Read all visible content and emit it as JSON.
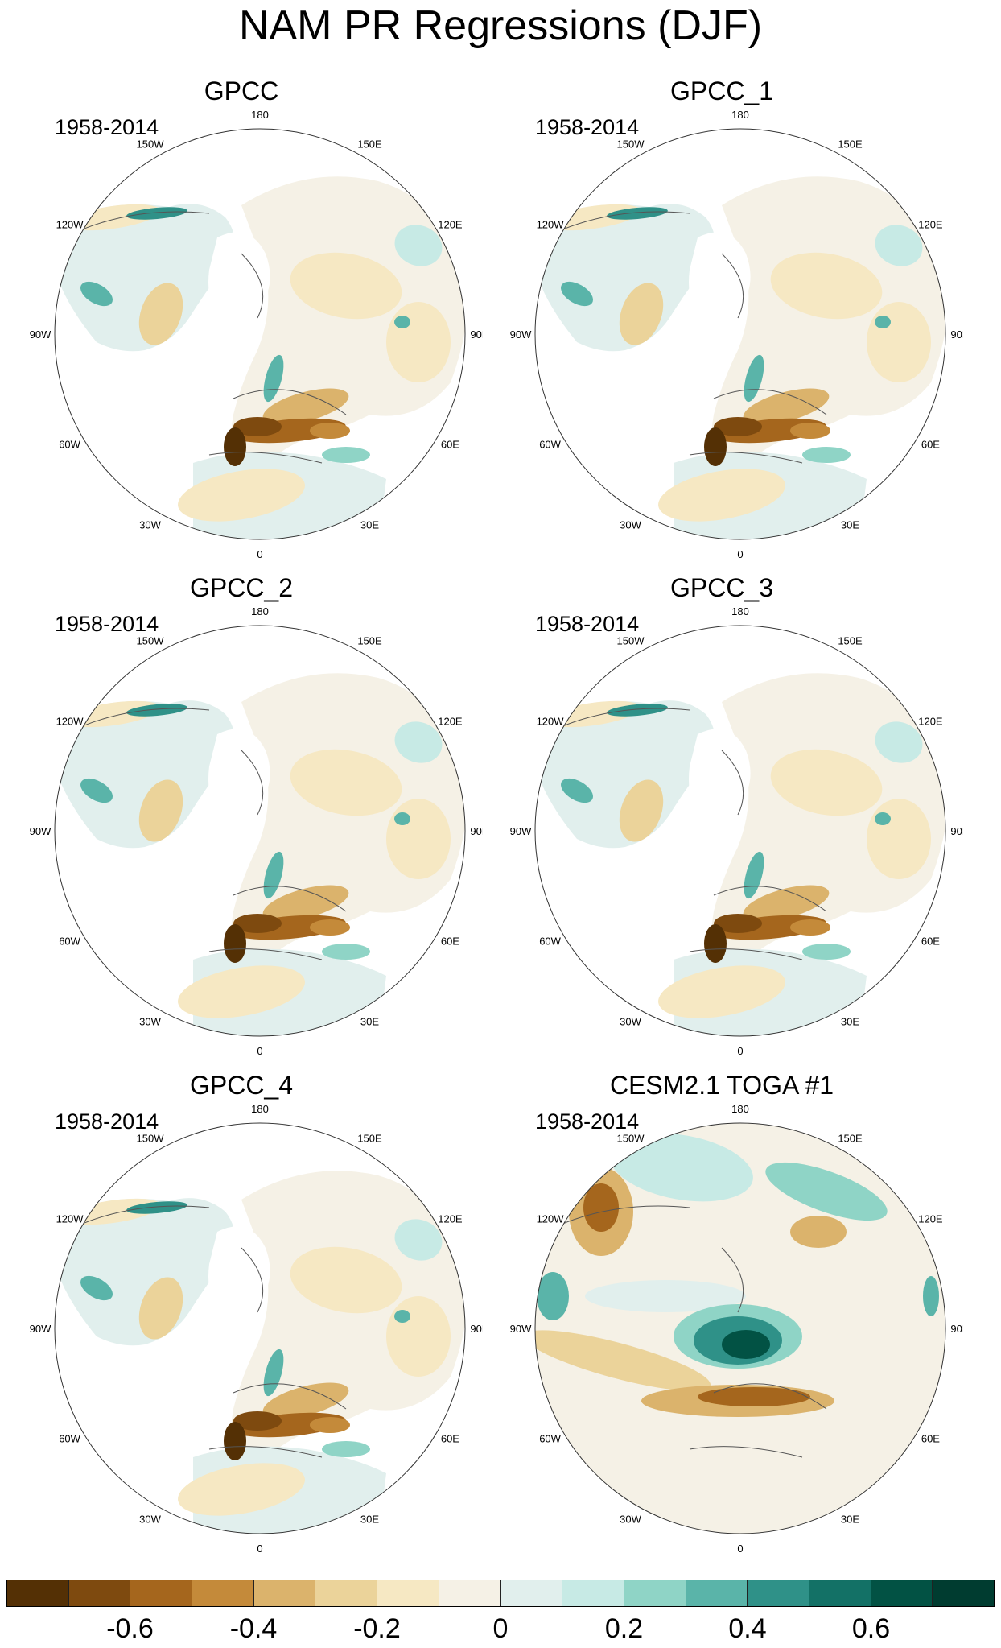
{
  "title": "NAM PR Regressions (DJF)",
  "panels": [
    {
      "name": "GPCC",
      "period": "1958-2014",
      "kind": "obs"
    },
    {
      "name": "GPCC_1",
      "period": "1958-2014",
      "kind": "obs"
    },
    {
      "name": "GPCC_2",
      "period": "1958-2014",
      "kind": "obs"
    },
    {
      "name": "GPCC_3",
      "period": "1958-2014",
      "kind": "obs"
    },
    {
      "name": "GPCC_4",
      "period": "1958-2014",
      "kind": "obs"
    },
    {
      "name": "CESM2.1 TOGA #1",
      "period": "1958-2014",
      "kind": "model"
    }
  ],
  "lon_labels": [
    "180",
    "150E",
    "120E",
    "90E",
    "60E",
    "30E",
    "0",
    "30W",
    "60W",
    "90W",
    "120W",
    "150W"
  ],
  "colorbar": {
    "colors": [
      "#543005",
      "#7e4a0f",
      "#a5661d",
      "#c48a3a",
      "#dbb36c",
      "#ebd39a",
      "#f6e8c3",
      "#f5f1e6",
      "#e1efed",
      "#c7eae5",
      "#8fd4c6",
      "#5ab4a9",
      "#2f9188",
      "#137166",
      "#025244",
      "#003c30"
    ],
    "tick_labels": [
      "-0.6",
      "-0.4",
      "-0.2",
      "0",
      "0.2",
      "0.4",
      "0.6"
    ],
    "tick_values": [
      -0.6,
      -0.4,
      -0.2,
      0,
      0.2,
      0.4,
      0.6
    ],
    "min": -0.8,
    "max": 0.8
  }
}
